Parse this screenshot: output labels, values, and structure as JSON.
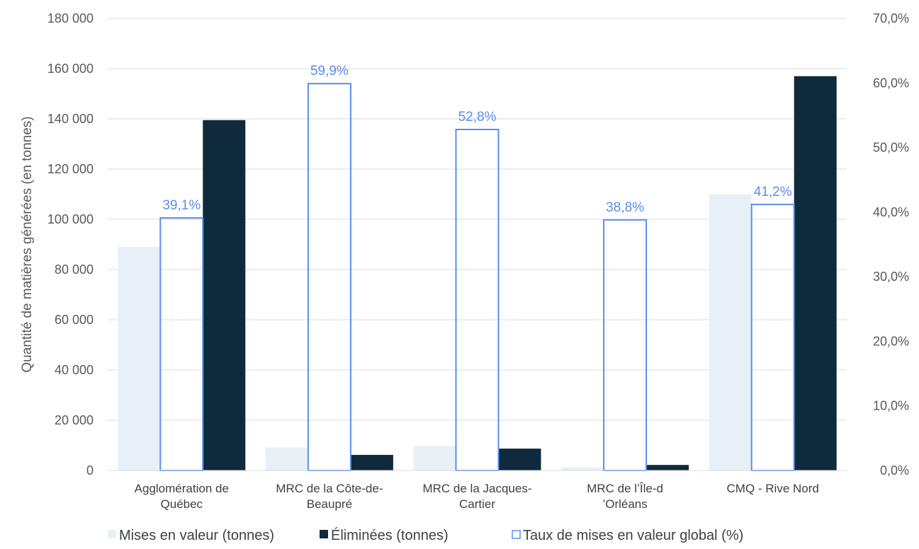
{
  "chart_data": {
    "type": "bar",
    "title": "",
    "ylabel": "Quantité de matières générées (en tonnes)",
    "y2label": "",
    "ylim": [
      0,
      180000
    ],
    "y2lim": [
      0,
      0.7
    ],
    "yticks": [
      "0",
      "20 000",
      "40 000",
      "60 000",
      "80 000",
      "100 000",
      "120 000",
      "140 000",
      "160 000",
      "180 000"
    ],
    "y2ticks": [
      "0,0%",
      "10,0%",
      "20,0%",
      "30,0%",
      "40,0%",
      "50,0%",
      "60,0%",
      "70,0%"
    ],
    "categories": [
      [
        "Agglomération de",
        "Québec"
      ],
      [
        "MRC de la Côte-de-",
        "Beaupré"
      ],
      [
        "MRC de la Jacques-",
        "Cartier"
      ],
      [
        "MRC de l’Île-d",
        "’Orléans"
      ],
      [
        "CMQ - Rive Nord"
      ]
    ],
    "series": [
      {
        "name": "Mises en valeur (tonnes)",
        "axis": "left",
        "values": [
          89000,
          9200,
          9700,
          1200,
          110000
        ],
        "color": "#e8f0f7"
      },
      {
        "name": "Éliminées (tonnes)",
        "axis": "left",
        "values": [
          139500,
          6200,
          8700,
          2200,
          157000
        ],
        "color": "#0f2a3c"
      },
      {
        "name": "Taux de mises en valeur global (%)",
        "axis": "right",
        "values": [
          0.391,
          0.599,
          0.528,
          0.388,
          0.412
        ],
        "labels": [
          "39,1%",
          "59,9%",
          "52,8%",
          "38,8%",
          "41,2%"
        ],
        "color": "#5b8def"
      }
    ],
    "grid": true,
    "legend_position": "bottom"
  }
}
